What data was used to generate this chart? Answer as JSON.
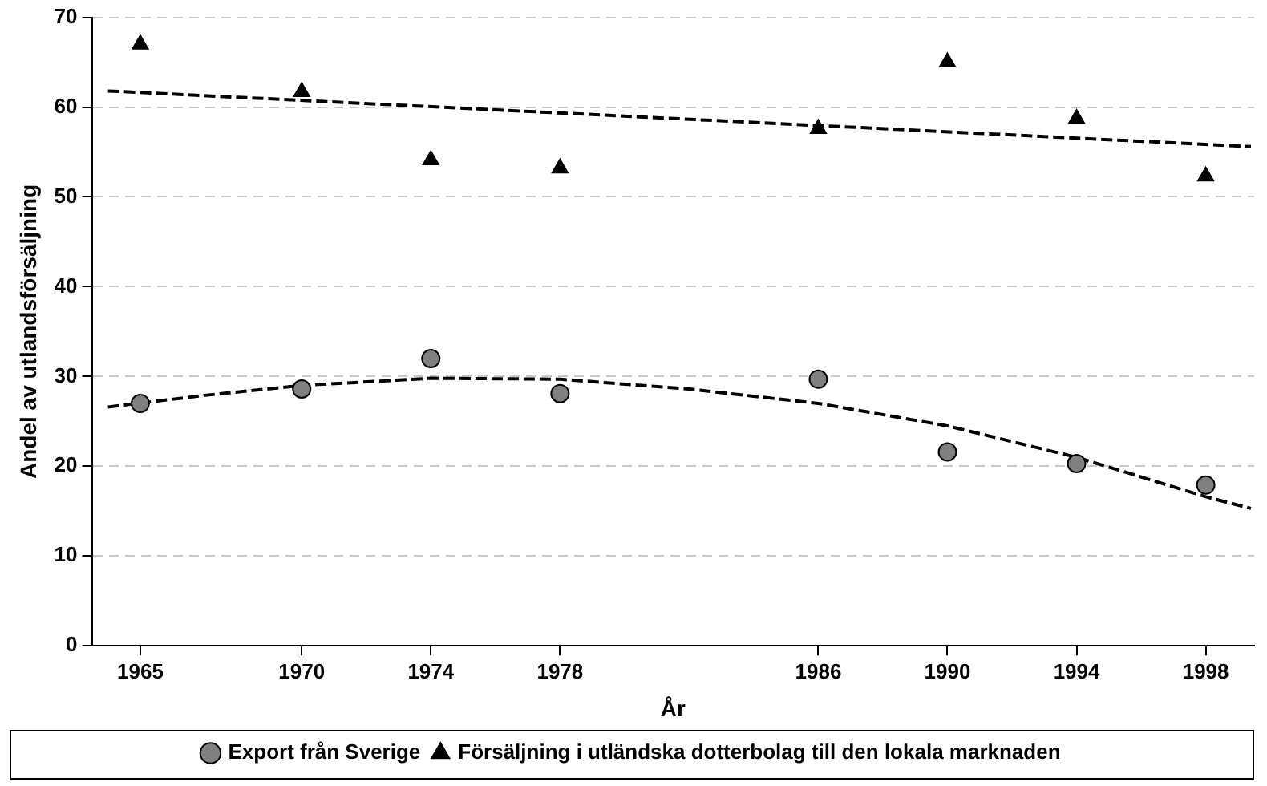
{
  "chart_data": {
    "type": "scatter",
    "xlabel": "År",
    "ylabel": "Andel av utlandsförsäljning",
    "x": [
      1965,
      1970,
      1974,
      1978,
      1986,
      1990,
      1994,
      1998
    ],
    "xlim": [
      1963.5,
      1999.5
    ],
    "xticks": [
      1965,
      1970,
      1974,
      1978,
      1986,
      1990,
      1994,
      1998
    ],
    "ylim": [
      0,
      70
    ],
    "yticks": [
      0,
      10,
      20,
      30,
      40,
      50,
      60,
      70
    ],
    "grid": "y",
    "legend": "bottom",
    "series": [
      {
        "name": "Export från Sverige",
        "color": "#808080",
        "marker": "circle",
        "values": [
          27.0,
          28.6,
          32.0,
          28.1,
          29.7,
          21.6,
          20.3,
          17.9
        ]
      },
      {
        "name": "Försäljning i utländska dotterbolag till den lokala marknaden",
        "color": "#000000",
        "marker": "triangle",
        "values": [
          67.0,
          61.7,
          54.1,
          53.2,
          57.6,
          65.0,
          58.7,
          52.3
        ]
      },
      {
        "type": "line",
        "color": "#000000",
        "line_style": "dashed",
        "marker": "none",
        "x": [
          1964,
          1999.4
        ],
        "values": [
          61.8,
          55.6
        ]
      },
      {
        "type": "line",
        "color": "#000000",
        "line_style": "dashed",
        "marker": "none",
        "x": [
          1964,
          1967,
          1970,
          1974,
          1978,
          1982,
          1986,
          1990,
          1994,
          1998,
          1999.4
        ],
        "values": [
          26.6,
          27.9,
          29.0,
          29.8,
          29.7,
          28.6,
          27.0,
          24.5,
          21.0,
          16.6,
          15.3
        ]
      }
    ]
  }
}
